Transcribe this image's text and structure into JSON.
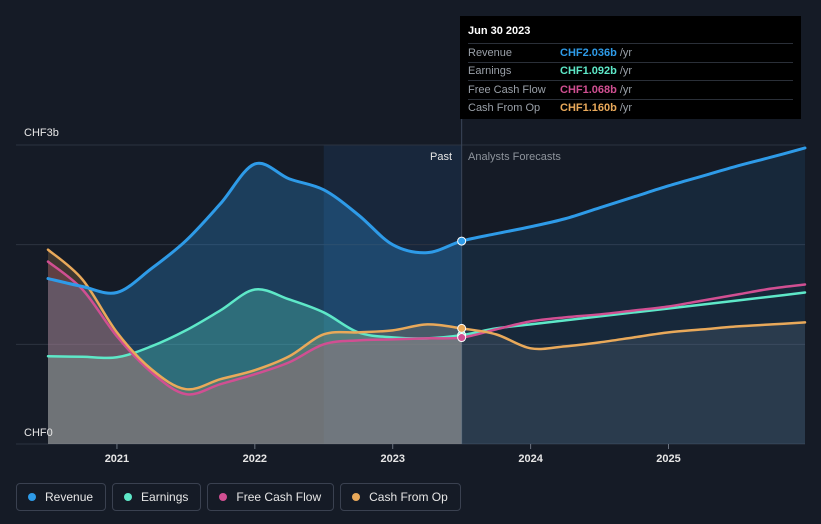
{
  "tooltip": {
    "date": "Jun 30 2023",
    "rows": [
      {
        "label": "Revenue",
        "value": "CHF2.036b",
        "unit": "/yr",
        "color": "#2e9be8"
      },
      {
        "label": "Earnings",
        "value": "CHF1.092b",
        "unit": "/yr",
        "color": "#5ee8c8"
      },
      {
        "label": "Free Cash Flow",
        "value": "CHF1.068b",
        "unit": "/yr",
        "color": "#d14f92"
      },
      {
        "label": "Cash From Op",
        "value": "CHF1.160b",
        "unit": "/yr",
        "color": "#e9a95a"
      }
    ]
  },
  "legend": [
    {
      "label": "Revenue",
      "color": "#2e9be8"
    },
    {
      "label": "Earnings",
      "color": "#5ee8c8"
    },
    {
      "label": "Free Cash Flow",
      "color": "#d14f92"
    },
    {
      "label": "Cash From Op",
      "color": "#e9a95a"
    }
  ],
  "chart_data": {
    "type": "line",
    "title": "",
    "ylabel_top": "CHF3b",
    "ylabel_bottom": "CHF0",
    "ylim": [
      0,
      3.0
    ],
    "xlim": [
      2020.5,
      2025.99
    ],
    "x_ticks": [
      2021,
      2022,
      2023,
      2024,
      2025
    ],
    "x_tick_labels": [
      "2021",
      "2022",
      "2023",
      "2024",
      "2025"
    ],
    "past_label": "Past",
    "forecast_label": "Analysts Forecasts",
    "divider_x": 2023.5,
    "shade_start_x": 2022.5,
    "series": [
      {
        "name": "Revenue",
        "color": "#2e9be8",
        "x": [
          2020.5,
          2020.75,
          2021.0,
          2021.25,
          2021.5,
          2021.75,
          2022.0,
          2022.25,
          2022.5,
          2022.75,
          2023.0,
          2023.25,
          2023.5,
          2023.75,
          2024.0,
          2024.25,
          2024.5,
          2024.75,
          2025.0,
          2025.25,
          2025.5,
          2025.75,
          2025.99
        ],
        "values": [
          1.66,
          1.58,
          1.52,
          1.76,
          2.04,
          2.41,
          2.81,
          2.66,
          2.55,
          2.3,
          2.0,
          1.92,
          2.036,
          2.11,
          2.18,
          2.26,
          2.37,
          2.48,
          2.59,
          2.69,
          2.79,
          2.88,
          2.97
        ]
      },
      {
        "name": "Earnings",
        "color": "#5ee8c8",
        "x": [
          2020.5,
          2020.75,
          2021.0,
          2021.25,
          2021.5,
          2021.75,
          2022.0,
          2022.25,
          2022.5,
          2022.75,
          2023.0,
          2023.25,
          2023.5,
          2023.75,
          2024.0,
          2024.25,
          2024.5,
          2024.75,
          2025.0,
          2025.25,
          2025.5,
          2025.75,
          2025.99
        ],
        "values": [
          0.88,
          0.875,
          0.87,
          0.98,
          1.14,
          1.34,
          1.55,
          1.45,
          1.32,
          1.12,
          1.07,
          1.06,
          1.092,
          1.16,
          1.2,
          1.24,
          1.28,
          1.32,
          1.36,
          1.4,
          1.44,
          1.48,
          1.52
        ]
      },
      {
        "name": "Free Cash Flow",
        "color": "#d14f92",
        "x": [
          2020.5,
          2020.75,
          2021.0,
          2021.25,
          2021.5,
          2021.75,
          2022.0,
          2022.25,
          2022.5,
          2022.75,
          2023.0,
          2023.25,
          2023.5,
          2023.75,
          2024.0,
          2024.25,
          2024.5,
          2024.75,
          2025.0,
          2025.25,
          2025.5,
          2025.75,
          2025.99
        ],
        "values": [
          1.83,
          1.55,
          1.08,
          0.72,
          0.5,
          0.6,
          0.7,
          0.82,
          1.0,
          1.04,
          1.05,
          1.06,
          1.068,
          1.15,
          1.23,
          1.27,
          1.3,
          1.34,
          1.38,
          1.44,
          1.5,
          1.56,
          1.6
        ]
      },
      {
        "name": "Cash From Op",
        "color": "#e9a95a",
        "x": [
          2020.5,
          2020.75,
          2021.0,
          2021.25,
          2021.5,
          2021.75,
          2022.0,
          2022.25,
          2022.5,
          2022.75,
          2023.0,
          2023.25,
          2023.5,
          2023.75,
          2024.0,
          2024.25,
          2024.5,
          2024.75,
          2025.0,
          2025.25,
          2025.5,
          2025.75,
          2025.99
        ],
        "values": [
          1.95,
          1.65,
          1.12,
          0.75,
          0.55,
          0.65,
          0.74,
          0.88,
          1.1,
          1.12,
          1.14,
          1.2,
          1.16,
          1.1,
          0.96,
          0.98,
          1.02,
          1.07,
          1.12,
          1.15,
          1.18,
          1.2,
          1.22
        ]
      }
    ]
  }
}
